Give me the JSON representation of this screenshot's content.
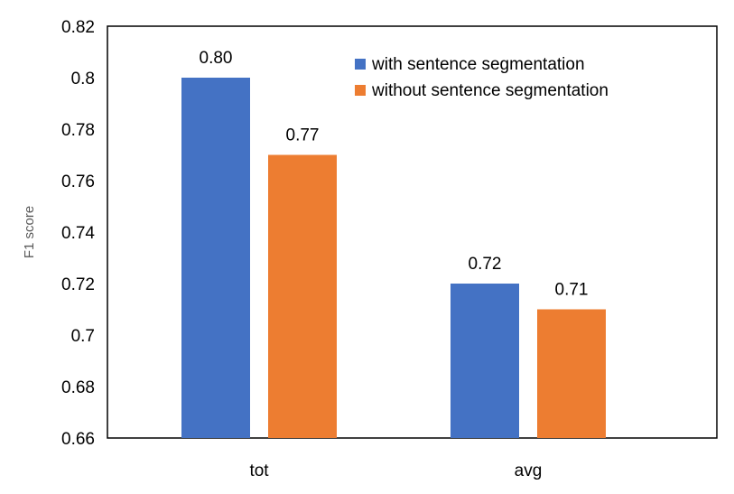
{
  "chart_data": {
    "type": "bar",
    "categories": [
      "tot",
      "avg"
    ],
    "series": [
      {
        "name": "with sentence segmentation",
        "values": [
          0.8,
          0.72
        ],
        "labels": [
          "0.80",
          "0.72"
        ],
        "color": "#4472C4"
      },
      {
        "name": "without sentence segmentation",
        "values": [
          0.77,
          0.71
        ],
        "labels": [
          "0.77",
          "0.71"
        ],
        "color": "#ED7D31"
      }
    ],
    "title": "",
    "xlabel": "",
    "ylabel": "F1 score",
    "ylim": [
      0.66,
      0.82
    ],
    "yticks": [
      {
        "value": 0.66,
        "label": "0.66"
      },
      {
        "value": 0.68,
        "label": "0.68"
      },
      {
        "value": 0.7,
        "label": "0.7"
      },
      {
        "value": 0.72,
        "label": "0.72"
      },
      {
        "value": 0.74,
        "label": "0.74"
      },
      {
        "value": 0.76,
        "label": "0.76"
      },
      {
        "value": 0.78,
        "label": "0.78"
      },
      {
        "value": 0.8,
        "label": "0.8"
      },
      {
        "value": 0.82,
        "label": "0.82"
      }
    ],
    "grid": false,
    "legend": "top-right"
  }
}
